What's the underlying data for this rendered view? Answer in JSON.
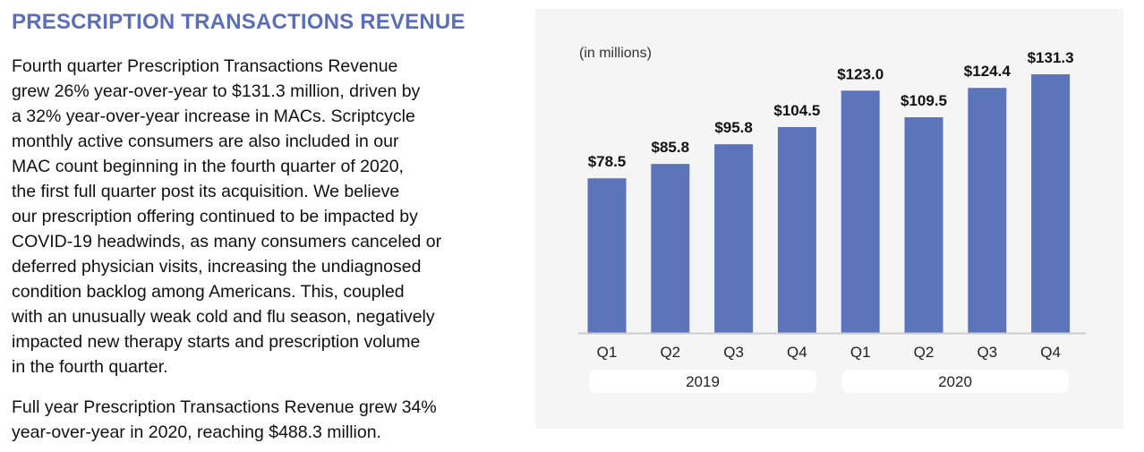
{
  "section_title": "PRESCRIPTION TRANSACTIONS REVENUE",
  "paragraphs": [
    [
      "Fourth quarter Prescription Transactions Revenue",
      "grew 26% year-over-year to $131.3 million, driven by",
      "a 32% year-over-year increase in MACs. Scriptcycle",
      "monthly active consumers are also included in our",
      "MAC count beginning in the fourth quarter of 2020,",
      "the first full quarter post its acquisition. We believe",
      "our prescription offering continued to be impacted by",
      "COVID-19 headwinds, as many consumers canceled or",
      "deferred physician visits, increasing the undiagnosed",
      "condition backlog among Americans. This, coupled",
      "with an unusually weak cold and flu season, negatively",
      "impacted new therapy starts and prescription volume",
      "in the fourth quarter."
    ],
    [
      "Full year Prescription Transactions Revenue grew 34%",
      "year-over-year in 2020, reaching $488.3 million."
    ]
  ],
  "chart_data": {
    "type": "bar",
    "unit_note": "(in millions)",
    "categories": [
      "Q1",
      "Q2",
      "Q3",
      "Q4",
      "Q1",
      "Q2",
      "Q3",
      "Q4"
    ],
    "groups": [
      {
        "label": "2019",
        "categories": [
          "Q1",
          "Q2",
          "Q3",
          "Q4"
        ]
      },
      {
        "label": "2020",
        "categories": [
          "Q1",
          "Q2",
          "Q3",
          "Q4"
        ]
      }
    ],
    "values": [
      78.5,
      85.8,
      95.8,
      104.5,
      123.0,
      109.5,
      124.4,
      131.3
    ],
    "data_labels": [
      "$78.5",
      "$85.8",
      "$95.8",
      "$104.5",
      "$123.0",
      "$109.5",
      "$124.4",
      "$131.3"
    ],
    "ylim": [
      0,
      131.3
    ],
    "grid": false,
    "bar_color": "#5c74b9",
    "background_color": "#f5f5f5"
  }
}
